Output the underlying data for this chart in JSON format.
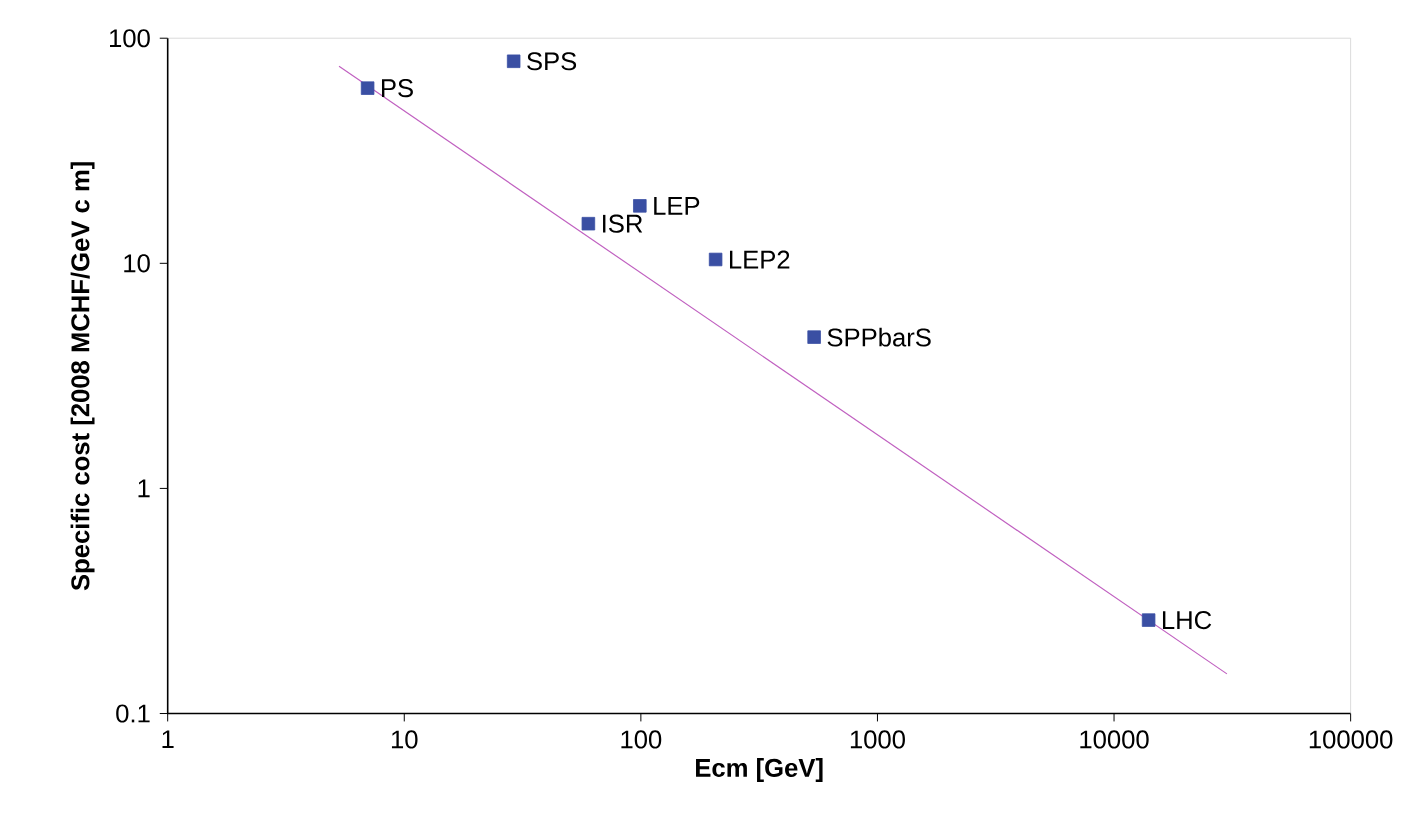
{
  "chart_data": {
    "type": "scatter",
    "xlabel": "Ecm [GeV]",
    "ylabel": "Specific cost [2008 MCHF/GeV c m]",
    "log": "xy",
    "marker": "square",
    "xlim": [
      1,
      100000
    ],
    "ylim": [
      0.1,
      100
    ],
    "xticks": [
      1,
      10,
      100,
      1000,
      10000,
      100000
    ],
    "yticks": [
      0.1,
      1,
      10,
      100
    ],
    "series": [
      {
        "color": "#3a4fa3",
        "x": [
          7,
          29,
          60,
          99,
          207,
          540,
          14000
        ],
        "values": [
          60,
          79,
          15,
          18,
          10.4,
          4.7,
          0.26
        ]
      },
      {
        "type": "line",
        "color": "#c060c0",
        "marker": "none",
        "x": [
          5.3,
          30000
        ],
        "values": [
          75,
          0.15
        ]
      }
    ],
    "annotations": [
      {
        "text": "PS",
        "x": 7,
        "y": 60
      },
      {
        "text": "SPS",
        "x": 29,
        "y": 79
      },
      {
        "text": "ISR",
        "x": 60,
        "y": 15
      },
      {
        "text": "LEP",
        "x": 99,
        "y": 18
      },
      {
        "text": "LEP2",
        "x": 207,
        "y": 10.4
      },
      {
        "text": "SPPbarS",
        "x": 540,
        "y": 4.7
      },
      {
        "text": "LHC",
        "x": 14000,
        "y": 0.26
      }
    ]
  }
}
